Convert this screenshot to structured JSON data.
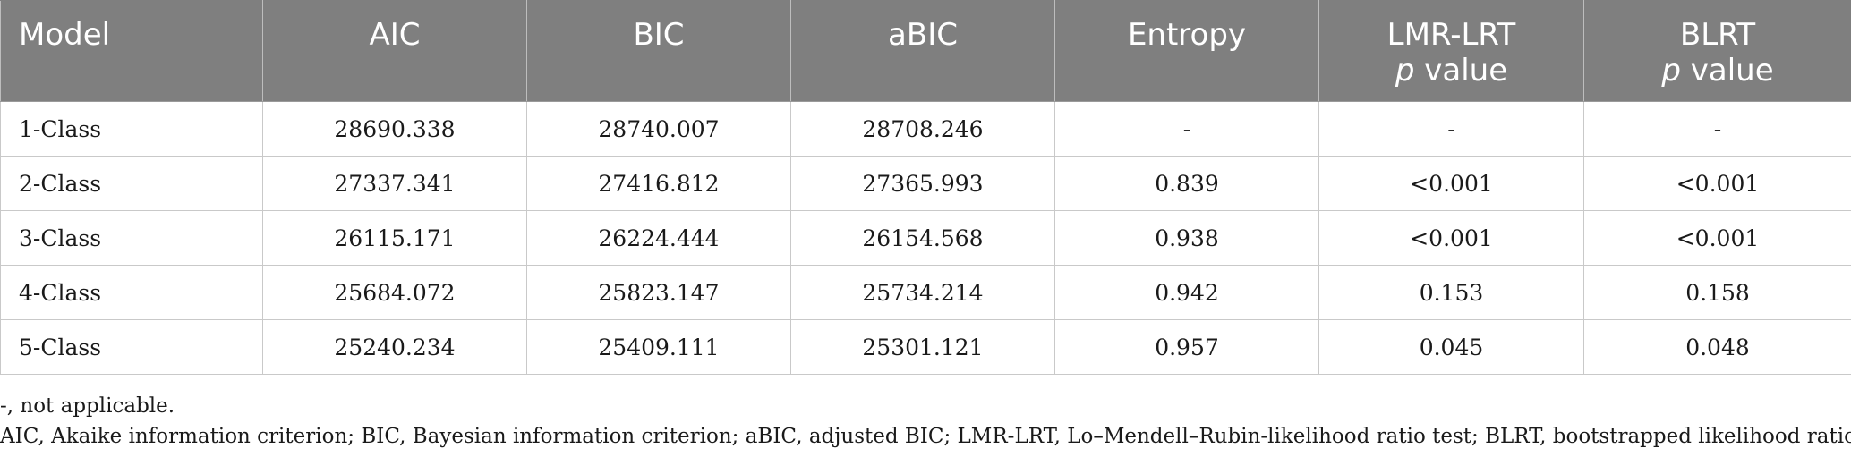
{
  "table": {
    "headers": [
      {
        "line1": "Model",
        "line2": ""
      },
      {
        "line1": "AIC",
        "line2": ""
      },
      {
        "line1": "BIC",
        "line2": ""
      },
      {
        "line1": "aBIC",
        "line2": ""
      },
      {
        "line1": "Entropy",
        "line2": ""
      },
      {
        "line1": "LMR-LRT",
        "line2_italic": "p",
        "line2": " value"
      },
      {
        "line1": "BLRT",
        "line2_italic": "p",
        "line2": " value"
      }
    ],
    "rows": [
      [
        "1-Class",
        "28690.338",
        "28740.007",
        "28708.246",
        "-",
        "-",
        "-"
      ],
      [
        "2-Class",
        "27337.341",
        "27416.812",
        "27365.993",
        "0.839",
        "<0.001",
        "<0.001"
      ],
      [
        "3-Class",
        "26115.171",
        "26224.444",
        "26154.568",
        "0.938",
        "<0.001",
        "<0.001"
      ],
      [
        "4-Class",
        "25684.072",
        "25823.147",
        "25734.214",
        "0.942",
        "0.153",
        "0.158"
      ],
      [
        "5-Class",
        "25240.234",
        "25409.111",
        "25301.121",
        "0.957",
        "0.045",
        "0.048"
      ]
    ]
  },
  "notes": {
    "line1": "-, not applicable.",
    "line2": "AIC, Akaike information criterion; BIC, Bayesian information criterion; aBIC, adjusted BIC; LMR-LRT, Lo–Mendell–Rubin-likelihood ratio test; BLRT, bootstrapped likelihood ratio test."
  },
  "colors": {
    "header_bg": "#7f7f7f",
    "header_text": "#ffffff",
    "grid": "#c9c9c9"
  }
}
